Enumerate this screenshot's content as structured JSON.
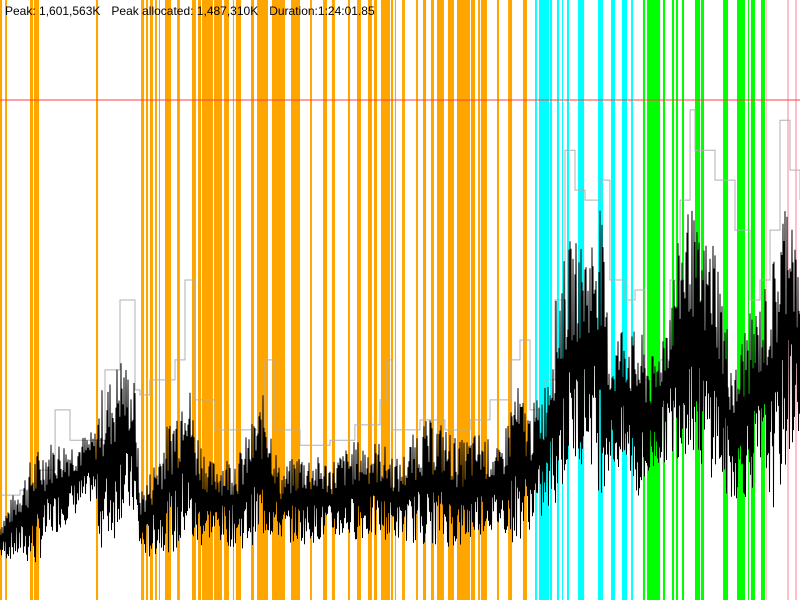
{
  "header": {
    "peak": "Peak: 1,601,563K",
    "peak_allocated": "Peak allocated: 1,487,310K",
    "duration": "Duration:1:24:01.85"
  },
  "chart_data": {
    "type": "line",
    "x_unit": "seconds",
    "y_unit": "thousand K",
    "xlim": [
      0,
      5041.85
    ],
    "ylim": [
      0,
      1922
    ],
    "grid": false,
    "peak_line": {
      "value": 1601.563,
      "color": "#ff4040"
    },
    "colors": {
      "orange": "#ffa500",
      "cyan": "#00ffff",
      "green": "#00ff00",
      "pink": "#ffc0cb",
      "heap": "#b0b0b0",
      "allocated": "#000000"
    },
    "bands": [
      [
        "orange",
        0,
        13
      ],
      [
        "orange",
        32,
        44
      ],
      [
        "orange",
        189,
        208
      ],
      [
        "orange",
        214,
        246
      ],
      [
        "orange",
        605,
        618
      ],
      [
        "orange",
        889,
        908
      ],
      [
        "orange",
        920,
        933
      ],
      [
        "orange",
        945,
        964
      ],
      [
        "orange",
        977,
        989
      ],
      [
        "orange",
        1002,
        1008
      ],
      [
        "orange",
        1040,
        1078
      ],
      [
        "orange",
        1116,
        1134
      ],
      [
        "orange",
        1210,
        1235
      ],
      [
        "orange",
        1248,
        1267
      ],
      [
        "orange",
        1273,
        1342
      ],
      [
        "orange",
        1349,
        1399
      ],
      [
        "orange",
        1412,
        1443
      ],
      [
        "orange",
        1468,
        1475
      ],
      [
        "orange",
        1487,
        1519
      ],
      [
        "orange",
        1582,
        1601
      ],
      [
        "orange",
        1620,
        1689
      ],
      [
        "orange",
        1714,
        1796
      ],
      [
        "orange",
        1834,
        1891
      ],
      [
        "orange",
        1954,
        1966
      ],
      [
        "orange",
        2036,
        2061
      ],
      [
        "orange",
        2092,
        2111
      ],
      [
        "orange",
        2193,
        2206
      ],
      [
        "orange",
        2250,
        2275
      ],
      [
        "orange",
        2319,
        2344
      ],
      [
        "orange",
        2357,
        2376
      ],
      [
        "orange",
        2401,
        2458
      ],
      [
        "orange",
        2464,
        2477
      ],
      [
        "orange",
        2489,
        2496
      ],
      [
        "orange",
        2534,
        2552
      ],
      [
        "orange",
        2622,
        2634
      ],
      [
        "orange",
        2666,
        2685
      ],
      [
        "orange",
        2716,
        2735
      ],
      [
        "orange",
        2754,
        2798
      ],
      [
        "orange",
        2823,
        2861
      ],
      [
        "orange",
        2880,
        2962
      ],
      [
        "orange",
        2968,
        2994
      ],
      [
        "orange",
        3013,
        3025
      ],
      [
        "orange",
        3031,
        3069
      ],
      [
        "orange",
        3132,
        3145
      ],
      [
        "orange",
        3202,
        3227
      ],
      [
        "orange",
        3296,
        3321
      ],
      [
        "cyan",
        3372,
        3384
      ],
      [
        "cyan",
        3397,
        3460
      ],
      [
        "cyan",
        3466,
        3479
      ],
      [
        "cyan",
        3510,
        3523
      ],
      [
        "cyan",
        3542,
        3548
      ],
      [
        "cyan",
        3573,
        3586
      ],
      [
        "cyan",
        3643,
        3681
      ],
      [
        "cyan",
        3769,
        3800
      ],
      [
        "cyan",
        3851,
        3876
      ],
      [
        "cyan",
        3920,
        3952
      ],
      [
        "cyan",
        3977,
        3989
      ],
      [
        "green",
        4052,
        4065
      ],
      [
        "green",
        4078,
        4160
      ],
      [
        "green",
        4178,
        4191
      ],
      [
        "green",
        4235,
        4248
      ],
      [
        "green",
        4260,
        4273
      ],
      [
        "green",
        4298,
        4311
      ],
      [
        "green",
        4380,
        4412
      ],
      [
        "green",
        4418,
        4437
      ],
      [
        "green",
        4557,
        4588
      ],
      [
        "green",
        4645,
        4695
      ],
      [
        "green",
        4714,
        4720
      ],
      [
        "green",
        4733,
        4758
      ],
      [
        "green",
        4796,
        4821
      ],
      [
        "pink",
        4828,
        4834
      ],
      [
        "pink",
        4960,
        4973
      ],
      [
        "pink",
        5010,
        5023
      ]
    ],
    "series": [
      {
        "key": "heap",
        "points": [
          [
            0,
            336
          ],
          [
            126,
            352
          ],
          [
            252,
            416
          ],
          [
            347,
            609
          ],
          [
            410,
            609
          ],
          [
            441,
            512
          ],
          [
            599,
            512
          ],
          [
            662,
            737
          ],
          [
            756,
            961
          ],
          [
            807,
            961
          ],
          [
            851,
            673
          ],
          [
            882,
            657
          ],
          [
            945,
            705
          ],
          [
            1103,
            769
          ],
          [
            1166,
            1025
          ],
          [
            1229,
            641
          ],
          [
            1355,
            545
          ],
          [
            1513,
            545
          ],
          [
            1670,
            769
          ],
          [
            1733,
            545
          ],
          [
            1891,
            496
          ],
          [
            2080,
            512
          ],
          [
            2237,
            561
          ],
          [
            2395,
            641
          ],
          [
            2433,
            769
          ],
          [
            2470,
            545
          ],
          [
            2647,
            577
          ],
          [
            2804,
            545
          ],
          [
            2962,
            577
          ],
          [
            3088,
            641
          ],
          [
            3214,
            769
          ],
          [
            3277,
            833
          ],
          [
            3340,
            609
          ],
          [
            3435,
            705
          ],
          [
            3498,
            961
          ],
          [
            3561,
            1441
          ],
          [
            3624,
            1313
          ],
          [
            3687,
            1281
          ],
          [
            3781,
            1345
          ],
          [
            3844,
            1025
          ],
          [
            3939,
            961
          ],
          [
            4002,
            993
          ],
          [
            4065,
            705
          ],
          [
            4160,
            769
          ],
          [
            4223,
            1025
          ],
          [
            4286,
            1281
          ],
          [
            4349,
            1570
          ],
          [
            4380,
            1441
          ],
          [
            4506,
            1345
          ],
          [
            4569,
            1345
          ],
          [
            4632,
            1185
          ],
          [
            4727,
            961
          ],
          [
            4790,
            1025
          ],
          [
            4853,
            1185
          ],
          [
            4916,
            1537
          ],
          [
            4979,
            1377
          ],
          [
            5042,
            1281
          ]
        ]
      },
      {
        "key": "allocated",
        "envelope": [
          [
            0,
            256,
            128
          ],
          [
            126,
            384,
            128
          ],
          [
            221,
            480,
            96
          ],
          [
            315,
            512,
            192
          ],
          [
            441,
            512,
            256
          ],
          [
            599,
            545,
            320
          ],
          [
            630,
            673,
            160
          ],
          [
            725,
            737,
            192
          ],
          [
            756,
            801,
            256
          ],
          [
            851,
            705,
            256
          ],
          [
            882,
            352,
            144
          ],
          [
            945,
            416,
            128
          ],
          [
            1040,
            545,
            160
          ],
          [
            1134,
            673,
            128
          ],
          [
            1166,
            801,
            192
          ],
          [
            1229,
            577,
            144
          ],
          [
            1323,
            448,
            192
          ],
          [
            1513,
            480,
            160
          ],
          [
            1670,
            673,
            192
          ],
          [
            1765,
            416,
            192
          ],
          [
            1891,
            480,
            176
          ],
          [
            2080,
            448,
            192
          ],
          [
            2237,
            512,
            192
          ],
          [
            2395,
            512,
            192
          ],
          [
            2521,
            448,
            192
          ],
          [
            2647,
            577,
            176
          ],
          [
            2773,
            577,
            176
          ],
          [
            2899,
            512,
            160
          ],
          [
            3025,
            545,
            208
          ],
          [
            3151,
            480,
            224
          ],
          [
            3246,
            705,
            176
          ],
          [
            3340,
            609,
            224
          ],
          [
            3435,
            705,
            256
          ],
          [
            3529,
            1057,
            320
          ],
          [
            3592,
            1153,
            416
          ],
          [
            3718,
            1153,
            448
          ],
          [
            3781,
            1313,
            320
          ],
          [
            3844,
            801,
            416
          ],
          [
            3939,
            929,
            384
          ],
          [
            3970,
            865,
            384
          ],
          [
            4033,
            865,
            288
          ],
          [
            4128,
            769,
            416
          ],
          [
            4223,
            993,
            448
          ],
          [
            4286,
            1185,
            448
          ],
          [
            4349,
            1281,
            480
          ],
          [
            4412,
            1153,
            416
          ],
          [
            4507,
            1185,
            384
          ],
          [
            4569,
            929,
            320
          ],
          [
            4632,
            737,
            320
          ],
          [
            4695,
            897,
            320
          ],
          [
            4790,
            961,
            384
          ],
          [
            4884,
            1121,
            288
          ],
          [
            4979,
            1409,
            448
          ],
          [
            5042,
            961,
            545
          ]
        ]
      }
    ]
  }
}
